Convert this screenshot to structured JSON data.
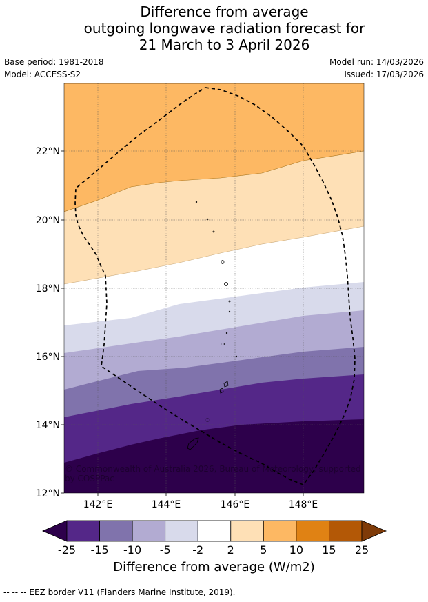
{
  "title": {
    "line1": "Difference from average",
    "line2": "outgoing longwave radiation forecast for",
    "line3": "21 March to 3 April 2026"
  },
  "meta": {
    "base_period": "Base period: 1981-2018",
    "model": "Model: ACCESS-S2",
    "model_run": "Model run: 14/03/2026",
    "issued": "Issued: 17/03/2026"
  },
  "map": {
    "lat_labels": [
      "22°N",
      "20°N",
      "18°N",
      "16°N",
      "14°N",
      "12°N"
    ],
    "lon_labels": [
      "142°E",
      "144°E",
      "146°E",
      "148°E"
    ],
    "copyright_line1": "© Commonwealth of Australia 2026, Bureau of Meteorology, supported",
    "copyright_line2": "by COSPPac"
  },
  "colorbar": {
    "title": "Difference from average (W/m2)",
    "ticks": [
      "-25",
      "-15",
      "-10",
      "-5",
      "-2",
      "2",
      "5",
      "10",
      "15",
      "25"
    ],
    "colors": [
      "#2d004b",
      "#542788",
      "#8073ac",
      "#b2abd2",
      "#d8daeb",
      "#ffffff",
      "#fee0b6",
      "#fdb863",
      "#e08214",
      "#b35806",
      "#7f3b08"
    ]
  },
  "footer": {
    "legend_text": "--  --  -- EEZ border V11 (Flanders Marine Institute, 2019)."
  }
}
